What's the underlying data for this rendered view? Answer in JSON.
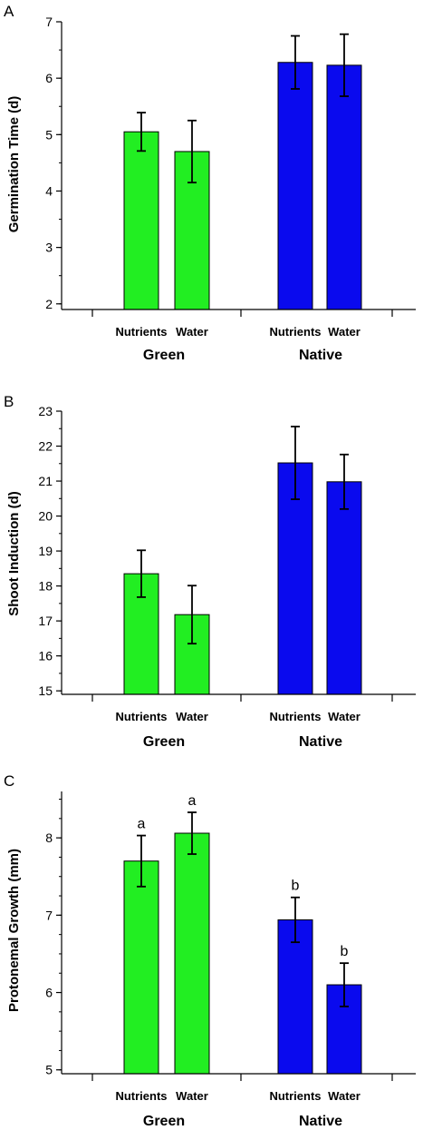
{
  "colors": {
    "Green": "#22ee22",
    "Native": "#0a0aee",
    "outline": "#000000",
    "error_bar": "#000000"
  },
  "chart_data": [
    {
      "panel": "A",
      "type": "bar",
      "title": "",
      "ylabel": "Germination Time (d)",
      "xlabel": "",
      "groups": [
        "Green",
        "Native"
      ],
      "categories": [
        "Nutrients",
        "Water",
        "Nutrients",
        "Water"
      ],
      "group_of_category": [
        "Green",
        "Green",
        "Native",
        "Native"
      ],
      "values": [
        5.05,
        4.7,
        6.28,
        6.23
      ],
      "errors": [
        0.34,
        0.55,
        0.47,
        0.55
      ],
      "significance": [
        "",
        "",
        "",
        ""
      ],
      "ylim": [
        1.9,
        7.0
      ],
      "yticks": [
        2,
        3,
        4,
        5,
        6,
        7
      ],
      "minor_tick_step": 0.5,
      "grid": false,
      "legend": "none"
    },
    {
      "panel": "B",
      "type": "bar",
      "title": "",
      "ylabel": "Shoot Induction (d)",
      "xlabel": "",
      "groups": [
        "Green",
        "Native"
      ],
      "categories": [
        "Nutrients",
        "Water",
        "Nutrients",
        "Water"
      ],
      "group_of_category": [
        "Green",
        "Green",
        "Native",
        "Native"
      ],
      "values": [
        18.35,
        17.18,
        21.52,
        20.98
      ],
      "errors": [
        0.67,
        0.83,
        1.04,
        0.78
      ],
      "significance": [
        "",
        "",
        "",
        ""
      ],
      "ylim": [
        14.9,
        23.0
      ],
      "yticks": [
        15,
        16,
        17,
        18,
        19,
        20,
        21,
        22,
        23
      ],
      "minor_tick_step": 0.5,
      "grid": false,
      "legend": "none"
    },
    {
      "panel": "C",
      "type": "bar",
      "title": "",
      "ylabel": "Protonemal Growth (mm)",
      "xlabel": "",
      "groups": [
        "Green",
        "Native"
      ],
      "categories": [
        "Nutrients",
        "Water",
        "Nutrients",
        "Water"
      ],
      "group_of_category": [
        "Green",
        "Green",
        "Native",
        "Native"
      ],
      "values": [
        7.7,
        8.06,
        6.94,
        6.1
      ],
      "errors": [
        0.33,
        0.27,
        0.29,
        0.28
      ],
      "significance": [
        "a",
        "a",
        "b",
        "b"
      ],
      "ylim": [
        4.95,
        8.6
      ],
      "yticks": [
        5,
        6,
        7,
        8
      ],
      "minor_tick_step": 0.25,
      "grid": false,
      "legend": "none"
    }
  ]
}
